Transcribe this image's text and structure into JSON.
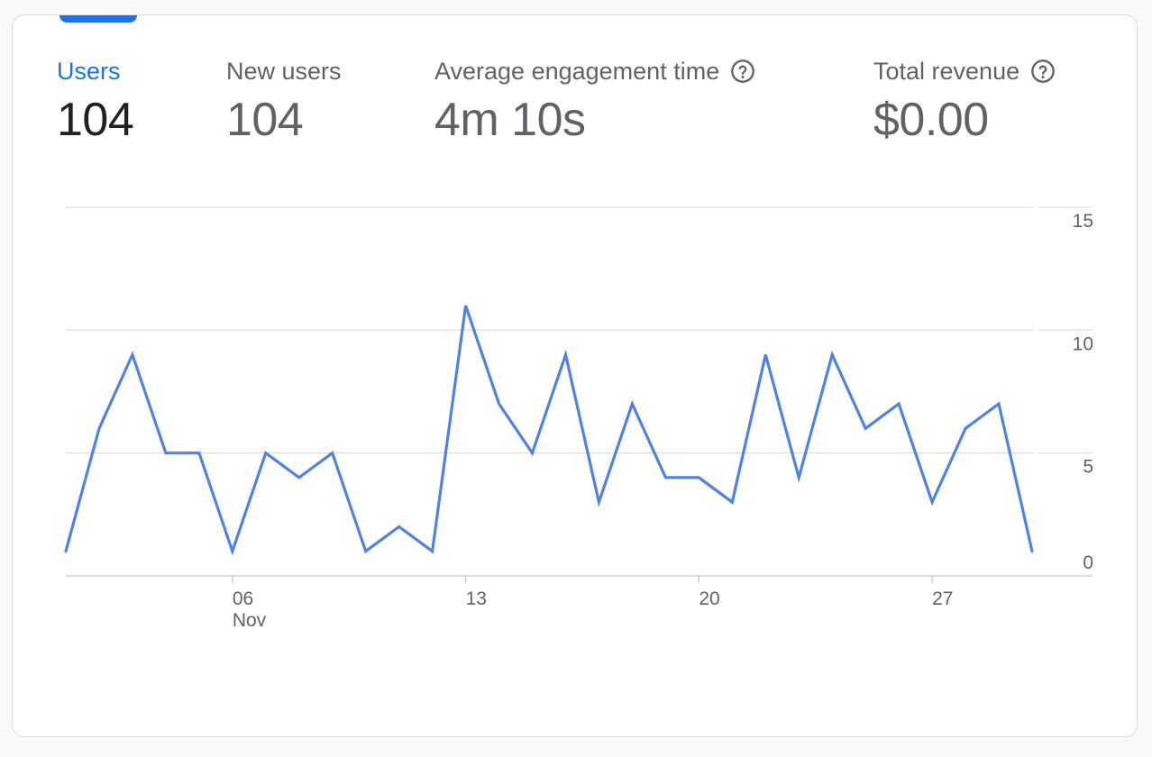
{
  "metrics": [
    {
      "label": "Users",
      "value": "104",
      "active": true,
      "help": false
    },
    {
      "label": "New users",
      "value": "104",
      "active": false,
      "help": false
    },
    {
      "label": "Average engagement time",
      "value": "4m 10s",
      "active": false,
      "help": true
    },
    {
      "label": "Total revenue",
      "value": "$0.00",
      "active": false,
      "help": true
    }
  ],
  "icons": {
    "help": "help-circle-icon"
  },
  "colors": {
    "accent": "#1a73e8",
    "series_line": "#5083e1",
    "grid": "#e0e0e0"
  },
  "chart_data": {
    "type": "line",
    "x": [
      "Nov 01",
      "Nov 02",
      "Nov 03",
      "Nov 04",
      "Nov 05",
      "Nov 06",
      "Nov 07",
      "Nov 08",
      "Nov 09",
      "Nov 10",
      "Nov 11",
      "Nov 12",
      "Nov 13",
      "Nov 14",
      "Nov 15",
      "Nov 16",
      "Nov 17",
      "Nov 18",
      "Nov 19",
      "Nov 20",
      "Nov 21",
      "Nov 22",
      "Nov 23",
      "Nov 24",
      "Nov 25",
      "Nov 26",
      "Nov 27",
      "Nov 28",
      "Nov 29",
      "Nov 30"
    ],
    "series": [
      {
        "values": [
          1,
          6,
          9,
          5,
          5,
          1,
          5,
          4,
          5,
          1,
          2,
          1,
          11,
          7,
          5,
          9,
          3,
          7,
          4,
          4,
          3,
          9,
          4,
          9,
          6,
          7,
          3,
          6,
          7,
          1
        ]
      }
    ],
    "x_tick_labels": [
      {
        "x": "Nov 06",
        "line1": "06",
        "line2": "Nov"
      },
      {
        "x": "Nov 13",
        "line1": "13",
        "line2": ""
      },
      {
        "x": "Nov 20",
        "line1": "20",
        "line2": ""
      },
      {
        "x": "Nov 27",
        "line1": "27",
        "line2": ""
      }
    ],
    "y_ticks": [
      0,
      5,
      10,
      15
    ],
    "y_tick_labels": [
      "0",
      "5",
      "10",
      "15"
    ],
    "ylim": [
      0,
      15
    ],
    "y_axis_position": "right",
    "grid": true,
    "title": "",
    "xlabel": "",
    "ylabel": ""
  }
}
